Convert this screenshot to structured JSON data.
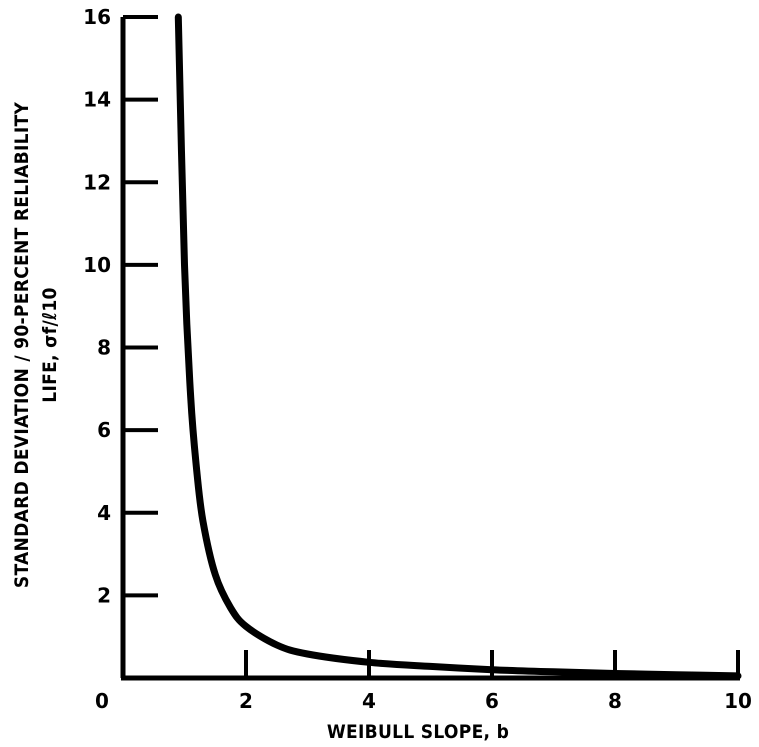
{
  "chart_data": {
    "type": "line",
    "title": "",
    "xlabel": "WEIBULL SLOPE, b",
    "ylabel_line1": "STANDARD DEVIATION / 90-PERCENT RELIABILITY",
    "ylabel_line2": "LIFE, σf/ℓ10",
    "xlim": [
      0,
      10
    ],
    "ylim": [
      0,
      16
    ],
    "xticks": [
      0,
      2,
      4,
      6,
      8,
      10
    ],
    "yticks": [
      2,
      4,
      6,
      8,
      10,
      12,
      14,
      16
    ],
    "x_tick_labels": [
      "0",
      "2",
      "4",
      "6",
      "8",
      "10"
    ],
    "y_tick_labels": [
      "2",
      "4",
      "6",
      "8",
      "10",
      "12",
      "14",
      "16"
    ],
    "grid": false,
    "legend": "none",
    "series": [
      {
        "x": [
          0.9,
          1.0,
          1.1,
          1.2,
          1.3,
          1.5,
          1.75,
          2.0,
          2.5,
          3.0,
          4.0,
          5.0,
          6.0,
          7.0,
          8.0,
          9.0,
          10.0
        ],
        "y": [
          16.0,
          10.0,
          6.8,
          5.0,
          3.8,
          2.5,
          1.7,
          1.25,
          0.8,
          0.58,
          0.38,
          0.28,
          0.2,
          0.15,
          0.11,
          0.08,
          0.05
        ]
      }
    ]
  }
}
